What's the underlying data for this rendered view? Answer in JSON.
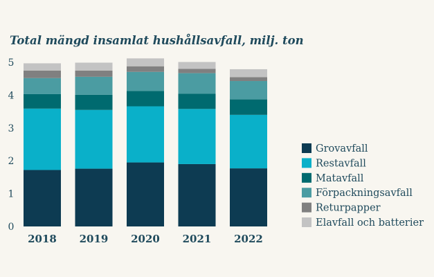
{
  "chart_data": {
    "type": "bar",
    "stacked": true,
    "title": "Total mängd insamlat hushållsavfall, milj. ton",
    "xlabel": "",
    "ylabel": "",
    "ylim": [
      0,
      5
    ],
    "yticks": [
      0,
      1,
      2,
      3,
      4,
      5
    ],
    "grid": false,
    "legend_position": "right",
    "categories": [
      "2018",
      "2019",
      "2020",
      "2021",
      "2022"
    ],
    "series": [
      {
        "name": "Grovavfall",
        "color": "#0d3b52",
        "values": [
          1.72,
          1.76,
          1.95,
          1.9,
          1.77
        ]
      },
      {
        "name": "Restavfall",
        "color": "#0ab0c9",
        "values": [
          1.87,
          1.79,
          1.71,
          1.68,
          1.63
        ]
      },
      {
        "name": "Matavfall",
        "color": "#006a6f",
        "values": [
          0.44,
          0.46,
          0.47,
          0.46,
          0.47
        ]
      },
      {
        "name": "Förpackningsavfall",
        "color": "#4b9ca2",
        "values": [
          0.49,
          0.55,
          0.58,
          0.63,
          0.56
        ]
      },
      {
        "name": "Returpapper",
        "color": "#808080",
        "values": [
          0.23,
          0.19,
          0.17,
          0.13,
          0.12
        ]
      },
      {
        "name": "Elavfall och batterier",
        "color": "#c3c3c3",
        "values": [
          0.22,
          0.24,
          0.24,
          0.21,
          0.24
        ]
      }
    ]
  }
}
